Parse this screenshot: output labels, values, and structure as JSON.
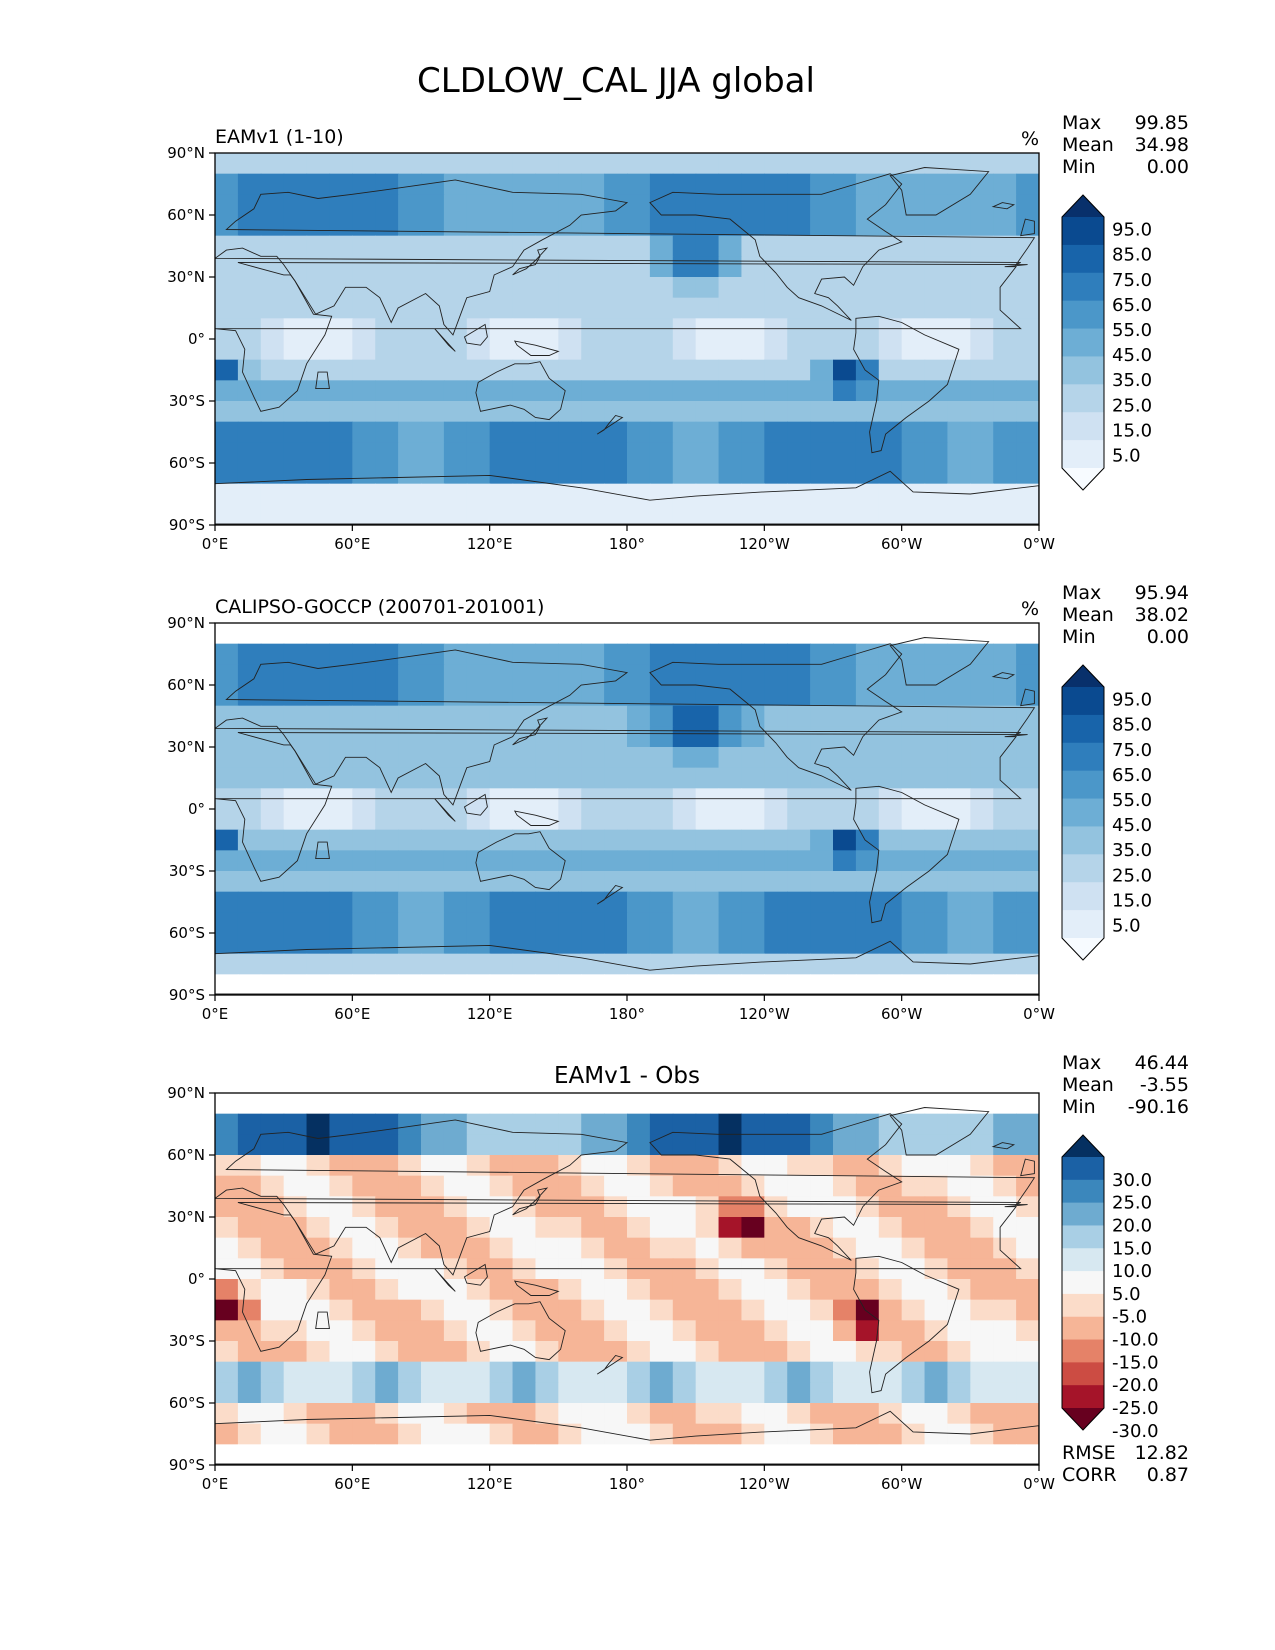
{
  "figure_title": "CLDLOW_CAL JJA global",
  "lon_ticks": [
    "0°E",
    "60°E",
    "120°E",
    "180°",
    "120°W",
    "60°W",
    "0°W"
  ],
  "lat_ticks": [
    "90°N",
    "60°N",
    "30°N",
    "0°",
    "30°S",
    "60°S",
    "90°S"
  ],
  "panels": [
    {
      "name": "model",
      "title": "EAMv1 (1-10)",
      "units": "%",
      "stats": [
        {
          "label": "Max",
          "value": "99.85"
        },
        {
          "label": "Mean",
          "value": "34.98"
        },
        {
          "label": "Min",
          "value": "0.00"
        }
      ],
      "colorbar": {
        "labels": [
          "95.0",
          "85.0",
          "75.0",
          "65.0",
          "55.0",
          "45.0",
          "35.0",
          "25.0",
          "15.0",
          "5.0"
        ],
        "colors": [
          "#f7fbff",
          "#e3eef9",
          "#cfe1f2",
          "#b5d4e9",
          "#93c3df",
          "#6daed5",
          "#4b97c9",
          "#2f7ebc",
          "#1864aa",
          "#0a4a90",
          "#08306b"
        ]
      },
      "footer": []
    },
    {
      "name": "obs",
      "title": "CALIPSO-GOCCP (200701-201001)",
      "units": "%",
      "stats": [
        {
          "label": "Max",
          "value": "95.94"
        },
        {
          "label": "Mean",
          "value": "38.02"
        },
        {
          "label": "Min",
          "value": "0.00"
        }
      ],
      "colorbar": {
        "labels": [
          "95.0",
          "85.0",
          "75.0",
          "65.0",
          "55.0",
          "45.0",
          "35.0",
          "25.0",
          "15.0",
          "5.0"
        ],
        "colors": [
          "#f7fbff",
          "#e3eef9",
          "#cfe1f2",
          "#b5d4e9",
          "#93c3df",
          "#6daed5",
          "#4b97c9",
          "#2f7ebc",
          "#1864aa",
          "#0a4a90",
          "#08306b"
        ]
      },
      "footer": []
    },
    {
      "name": "diff",
      "title": "EAMv1 - Obs",
      "units": "",
      "stats": [
        {
          "label": "Max",
          "value": "46.44"
        },
        {
          "label": "Mean",
          "value": "-3.55"
        },
        {
          "label": "Min",
          "value": "-90.16"
        }
      ],
      "colorbar": {
        "labels": [
          "30.0",
          "25.0",
          "20.0",
          "15.0",
          "10.0",
          "5.0",
          "-5.0",
          "-10.0",
          "-15.0",
          "-20.0",
          "-25.0",
          "-30.0"
        ],
        "colors": [
          "#67001f",
          "#a51429",
          "#cc4c43",
          "#e58268",
          "#f6b597",
          "#fbdcc9",
          "#f7f7f7",
          "#d7e8f1",
          "#a9cfe5",
          "#6eabd0",
          "#3b87bc",
          "#1b61a5",
          "#053061"
        ]
      },
      "footer": [
        {
          "label": "RMSE",
          "value": "12.82"
        },
        {
          "label": "CORR",
          "value": "0.87"
        }
      ]
    }
  ]
}
